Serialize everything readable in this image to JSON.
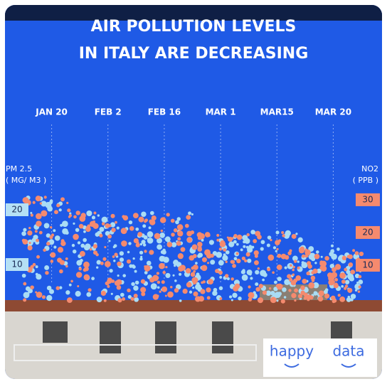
{
  "chart_data": {
    "type": "dots",
    "title": [
      "AIR POLLUTION LEVELS",
      "IN ITALY ARE DECREASING"
    ],
    "categories": [
      "JAN 20",
      "FEB 2",
      "FEB 16",
      "MAR 1",
      "MAR15",
      "MAR 20"
    ],
    "y_label": [
      "PM 2.5",
      "( MG/ M3 )"
    ],
    "y2_label": [
      "NO2",
      "( PPB )"
    ],
    "series": [
      {
        "color": "#a9dcf5",
        "values": [
          22.6,
          19.4,
          19.4,
          15.3,
          16,
          13.5
        ]
      },
      {
        "color": "#f58a6e",
        "axis": "y2",
        "values": [
          31,
          26,
          26,
          19.5,
          20,
          16
        ]
      }
    ],
    "ylim": [
      0,
      25
    ],
    "yticks": [
      10,
      20
    ],
    "y2lim": [
      -6.5,
      35.3
    ],
    "y2ticks": [
      10,
      20,
      30
    ],
    "tick_colors": {
      "y": "#b5e0f5",
      "y2": "#f58a6e"
    }
  },
  "brand": [
    "happy",
    "data"
  ]
}
